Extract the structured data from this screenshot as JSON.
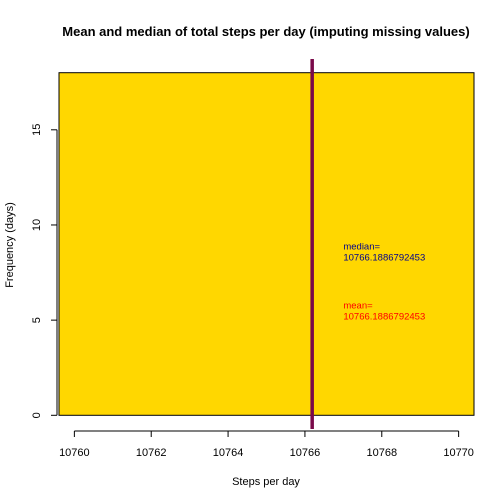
{
  "chart_data": {
    "type": "bar",
    "title": "Mean and median of total steps per day (imputing missing values)",
    "xlabel": "Steps per day",
    "ylabel": "Frequency (days)",
    "xlim": [
      10759.6,
      10770.4
    ],
    "ylim": [
      -0.72,
      18.72
    ],
    "xticks": [
      10760,
      10762,
      10764,
      10766,
      10768,
      10770
    ],
    "yticks": [
      0,
      5,
      10,
      15
    ],
    "bars": [
      {
        "x0": 10759.6,
        "x1": 10770.4,
        "value": 18
      }
    ],
    "bar_fill": "#FFD700",
    "vline": {
      "x": 10766.1886792453,
      "color": "#7A0A4A"
    },
    "annotations": [
      {
        "x": 10767.0,
        "y": 8.7,
        "lines": [
          "median=",
          "10766.1886792453"
        ],
        "color": "#00008B"
      },
      {
        "x": 10767.0,
        "y": 5.6,
        "lines": [
          "mean=",
          "10766.1886792453"
        ],
        "color": "#FF0000"
      }
    ]
  }
}
